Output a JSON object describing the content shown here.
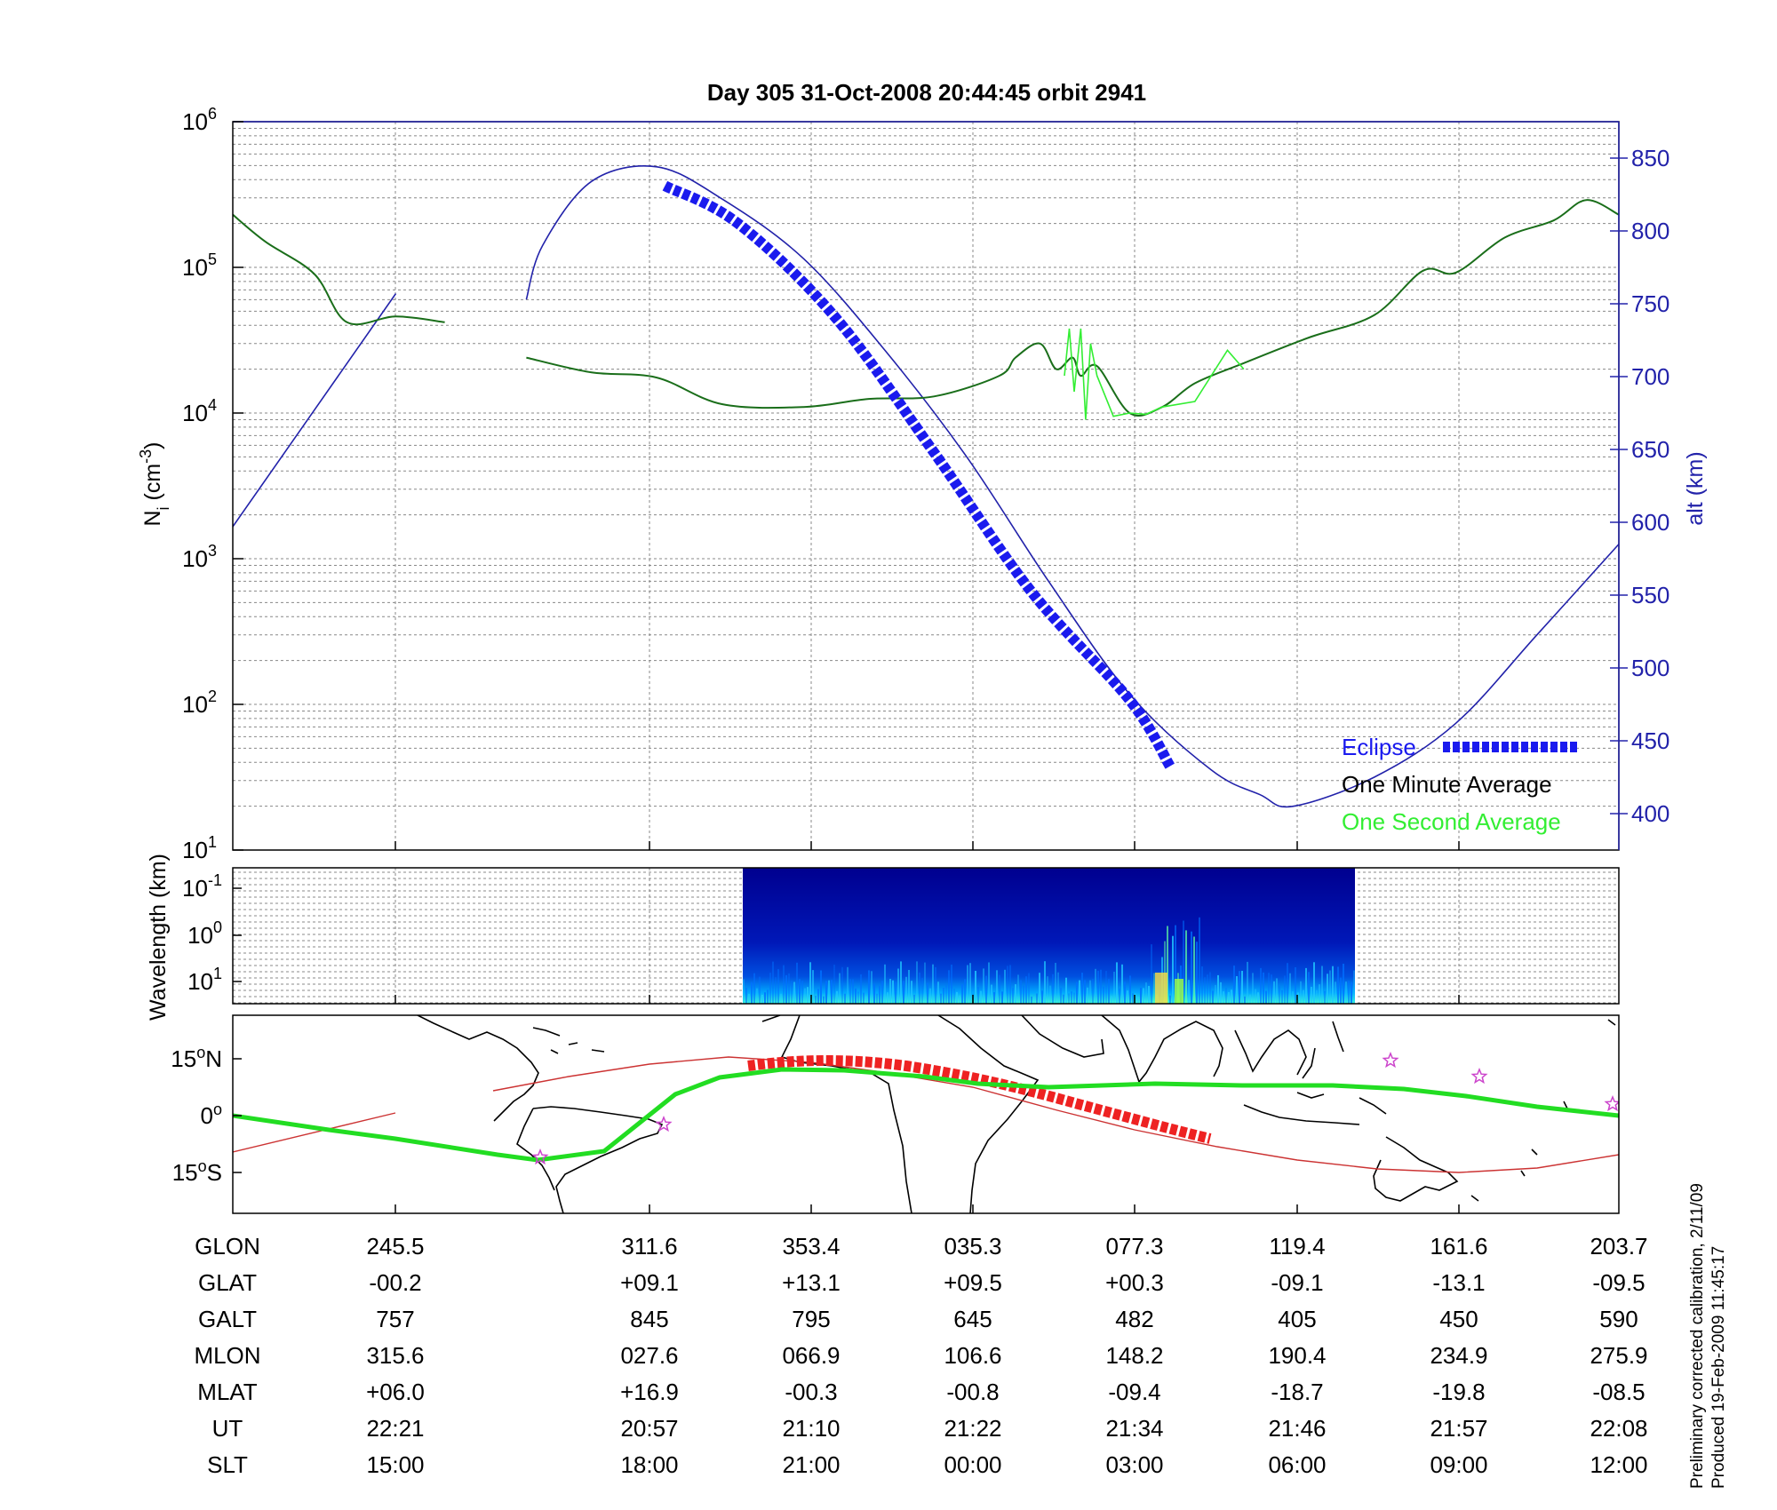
{
  "chart_data": [
    {
      "type": "line",
      "title": "Day 305  31-Oct-2008 20:44:45   orbit 2941",
      "ylabel_left": {
        "base": "N",
        "sub": "i",
        "units_pre": " (cm",
        "units_sup": "-3",
        "units_post": ")"
      },
      "ylabel_right": "alt (km)",
      "yscale_left": "log",
      "ylim_left": [
        10,
        1000000
      ],
      "left_ticks": [
        {
          "mantissa": "10",
          "exp": "1",
          "value": 10
        },
        {
          "mantissa": "10",
          "exp": "2",
          "value": 100
        },
        {
          "mantissa": "10",
          "exp": "3",
          "value": 1000
        },
        {
          "mantissa": "10",
          "exp": "4",
          "value": 10000
        },
        {
          "mantissa": "10",
          "exp": "5",
          "value": 100000
        },
        {
          "mantissa": "10",
          "exp": "6",
          "value": 1000000
        }
      ],
      "ylim_right": [
        375,
        875
      ],
      "right_ticks": [
        "400",
        "450",
        "500",
        "550",
        "600",
        "650",
        "700",
        "750",
        "800",
        "850"
      ],
      "xlim_ut_minutes": [
        1325,
        1410
      ],
      "grid": true,
      "legend_position": "bottom-right",
      "colors": {
        "axis_right": "#2222aa",
        "eclipse": "#1a1aee",
        "minute": "#000000",
        "second": "#33ee33",
        "altitude": "#2222aa"
      },
      "series": [
        {
          "name": "Eclipse",
          "style": "thick-dashed",
          "x": [
            1351.5,
            1356,
            1362,
            1368,
            1374,
            1380,
            1382.5
          ],
          "y": [
            831,
            805,
            740,
            648,
            552,
            478,
            432
          ]
        },
        {
          "name": "One Minute Average",
          "units": "cm^-3",
          "x": [
            1325,
            1327,
            1330,
            1332,
            1335,
            1338,
            1340,
            1343,
            1347,
            1351,
            1355,
            1360,
            1364,
            1368,
            1372,
            1373,
            1374.5,
            1375.5,
            1376.5,
            1377,
            1378,
            1380,
            1382,
            1384,
            1387,
            1391,
            1395,
            1398,
            1400,
            1403,
            1406,
            1408,
            1410
          ],
          "y": [
            230000,
            150000,
            90000,
            42000,
            46000,
            42000,
            null,
            24000,
            19000,
            17500,
            11500,
            11000,
            12500,
            13000,
            18000,
            24000,
            30000,
            20000,
            24000,
            18000,
            21000,
            10000,
            11000,
            16000,
            22000,
            33000,
            47000,
            95000,
            92000,
            160000,
            210000,
            290000,
            230000
          ]
        },
        {
          "name": "One Second Average",
          "units": "cm^-3",
          "x": [
            1376,
            1376.3,
            1376.6,
            1377,
            1377.3,
            1377.6,
            1378,
            1379,
            1380,
            1381,
            1382,
            1384,
            1386,
            1387
          ],
          "y": [
            18000,
            38000,
            14000,
            38000,
            9000,
            30000,
            18000,
            9500,
            10000,
            9800,
            11000,
            12000,
            27000,
            20000
          ]
        },
        {
          "name": "altitude",
          "units": "km",
          "x": [
            1325,
            1335,
            1340,
            1343,
            1344,
            1347,
            1351,
            1355,
            1360,
            1365,
            1370,
            1375,
            1380,
            1385,
            1388,
            1390,
            1395,
            1400,
            1405,
            1410
          ],
          "y": [
            597,
            757,
            null,
            753,
            790,
            834,
            844,
            822,
            781,
            718,
            645,
            560,
            482,
            430,
            413,
            405,
            425,
            462,
            523,
            585
          ]
        }
      ]
    },
    {
      "type": "heatmap",
      "ylabel": "Wavelength (km)",
      "yscale": "log",
      "y_ticks": [
        {
          "mantissa": "10",
          "exp": "-1"
        },
        {
          "mantissa": "10",
          "exp": "0"
        },
        {
          "mantissa": "10",
          "exp": "1"
        }
      ],
      "data_range_ut": [
        "21:02",
        "21:40"
      ],
      "colormap": "jet",
      "hotspots_ut": [
        "21:32",
        "21:34"
      ]
    },
    {
      "type": "map",
      "y_ticks": [
        {
          "value": "15",
          "deg": "o",
          "hemi": "N"
        },
        {
          "value": "0",
          "deg": "o",
          "hemi": ""
        },
        {
          "value": "15",
          "deg": "o",
          "hemi": "S"
        }
      ],
      "orbit_track_color": "#cc3333",
      "eclipse_track_color": "#ee2222",
      "magnetic_equator_color": "#22dd22",
      "station_marker_color": "#cc44cc"
    }
  ],
  "table": {
    "rows": [
      {
        "label": "GLON",
        "values": [
          "245.5",
          "311.6",
          "353.4",
          "035.3",
          "077.3",
          "119.4",
          "161.6",
          "203.7"
        ]
      },
      {
        "label": "GLAT",
        "values": [
          "-00.2",
          "+09.1",
          "+13.1",
          "+09.5",
          "+00.3",
          "-09.1",
          "-13.1",
          "-09.5"
        ]
      },
      {
        "label": "GALT",
        "values": [
          "757",
          "845",
          "795",
          "645",
          "482",
          "405",
          "450",
          "590"
        ]
      },
      {
        "label": "MLON",
        "values": [
          "315.6",
          "027.6",
          "066.9",
          "106.6",
          "148.2",
          "190.4",
          "234.9",
          "275.9"
        ]
      },
      {
        "label": "MLAT",
        "values": [
          "+06.0",
          "+16.9",
          "-00.3",
          "-00.8",
          "-09.4",
          "-18.7",
          "-19.8",
          "-08.5"
        ]
      },
      {
        "label": "UT",
        "values": [
          "22:21",
          "20:57",
          "21:10",
          "21:22",
          "21:34",
          "21:46",
          "21:57",
          "22:08"
        ]
      },
      {
        "label": "SLT",
        "values": [
          "15:00",
          "18:00",
          "21:00",
          "00:00",
          "03:00",
          "06:00",
          "09:00",
          "12:00"
        ]
      }
    ]
  },
  "footer": {
    "line1": "Preliminary corrected calibration, 2/11/09",
    "line2": "Produced 19-Feb-2009 11:45:17"
  }
}
